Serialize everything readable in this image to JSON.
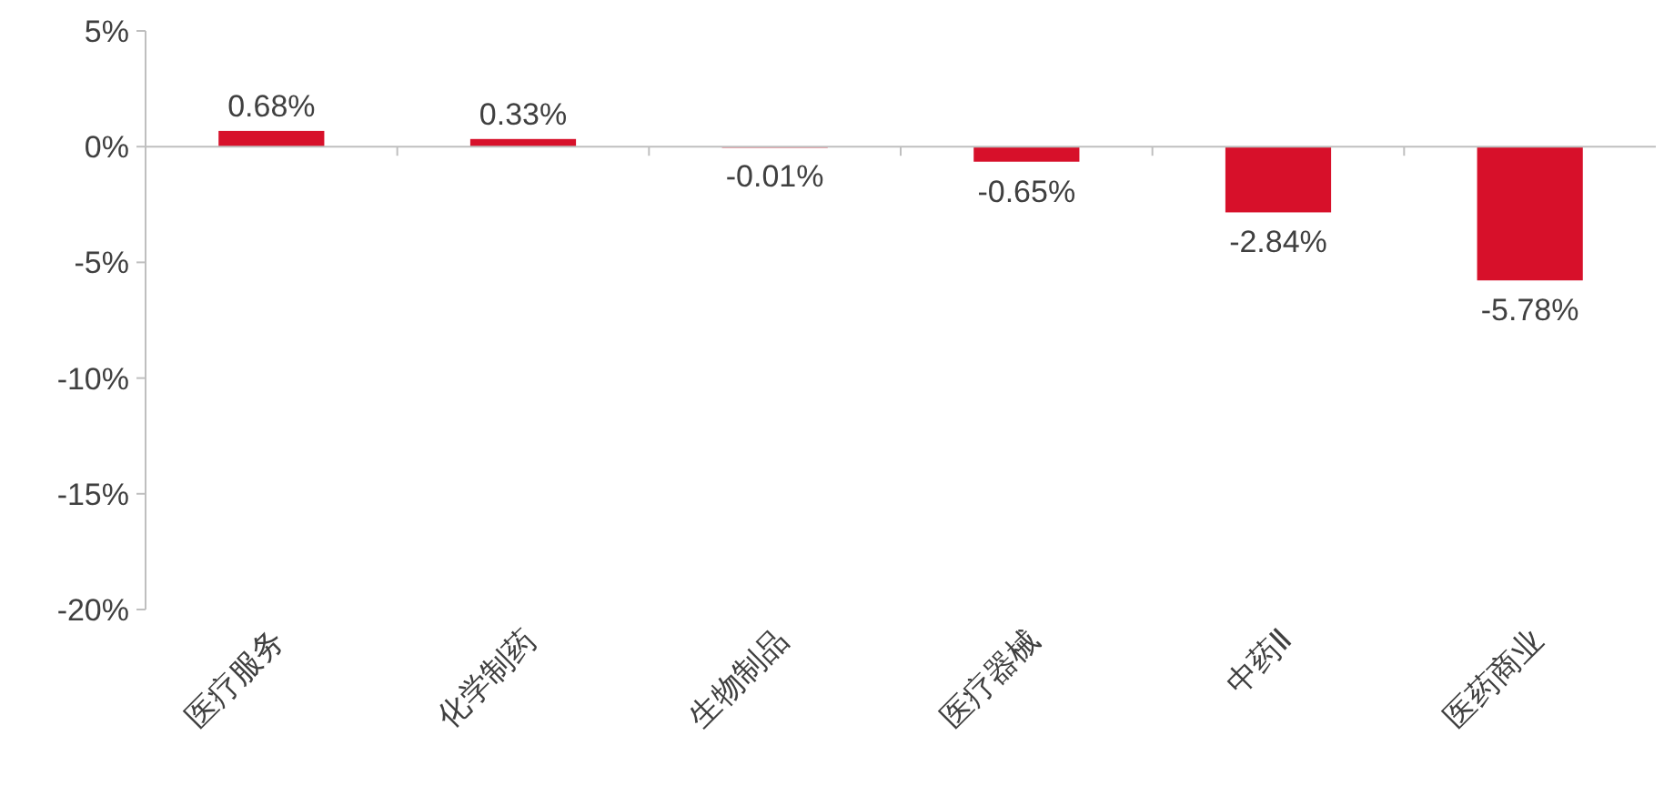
{
  "chart_data": {
    "type": "bar",
    "categories": [
      "医疗服务",
      "化学制药",
      "生物制品",
      "医疗器械",
      "中药Ⅱ",
      "医药商业"
    ],
    "values": [
      0.68,
      0.33,
      -0.01,
      -0.65,
      -2.84,
      -5.78
    ],
    "value_labels": [
      "0.68%",
      "0.33%",
      "-0.01%",
      "-0.65%",
      "-2.84%",
      "-5.78%"
    ],
    "color": "#d7102a",
    "ylim": [
      -20,
      5
    ],
    "yticks": [
      {
        "value": 5,
        "label": "5%"
      },
      {
        "value": 0,
        "label": "0%"
      },
      {
        "value": -5,
        "label": "-5%"
      },
      {
        "value": -10,
        "label": "-10%"
      },
      {
        "value": -15,
        "label": "-15%"
      },
      {
        "value": -20,
        "label": "-20%"
      }
    ]
  }
}
